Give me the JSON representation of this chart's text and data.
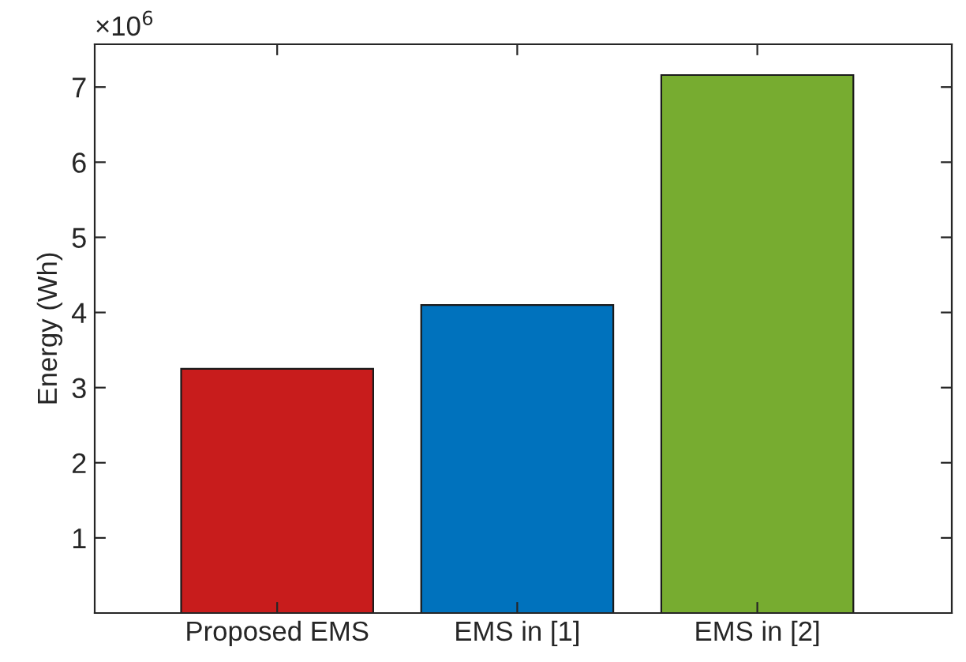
{
  "chart_data": {
    "type": "bar",
    "ylabel": "Energy (Wh)",
    "categories": [
      "Proposed EMS",
      "EMS in [1]",
      "EMS in [2]"
    ],
    "values": [
      3.25,
      4.1,
      7.16
    ],
    "colors": [
      "#c81c1c",
      "#0072bd",
      "#77ac30"
    ],
    "ylim": [
      0,
      7.57
    ],
    "yticks": [
      1,
      2,
      3,
      4,
      5,
      6,
      7
    ],
    "grid": false,
    "annotations": [
      "×10$^{6}$"
    ]
  }
}
